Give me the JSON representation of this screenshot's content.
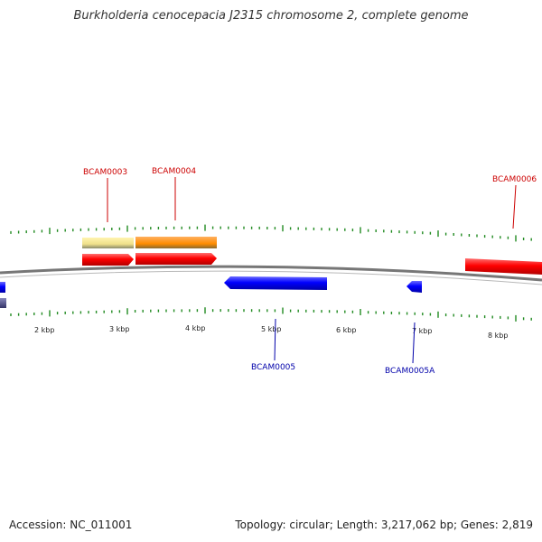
{
  "title": "Burkholderia cenocepacia J2315 chromosome 2, complete genome",
  "footer": {
    "accession": "Accession: NC_011001",
    "summary": "Topology: circular; Length: 3,217,062 bp; Genes: 2,819"
  },
  "colors": {
    "forward_gene": "#ff0000",
    "reverse_gene": "#0000ff",
    "reverse_gene_dim": "#555588",
    "tick": "#228b22",
    "backbone": "#888888",
    "orange_feature": "#ff8c00",
    "pale_feature": "#f0e68c"
  },
  "scale_labels": [
    "2 kbp",
    "3 kbp",
    "4 kbp",
    "5 kbp",
    "6 kbp",
    "7 kbp",
    "8 kbp"
  ],
  "gene_labels": [
    {
      "text": "BCAM0003",
      "strand": "forward"
    },
    {
      "text": "BCAM0004",
      "strand": "forward"
    },
    {
      "text": "BCAM0006",
      "strand": "forward"
    },
    {
      "text": "BCAM0005",
      "strand": "reverse"
    },
    {
      "text": "BCAM0005A",
      "strand": "reverse"
    }
  ]
}
